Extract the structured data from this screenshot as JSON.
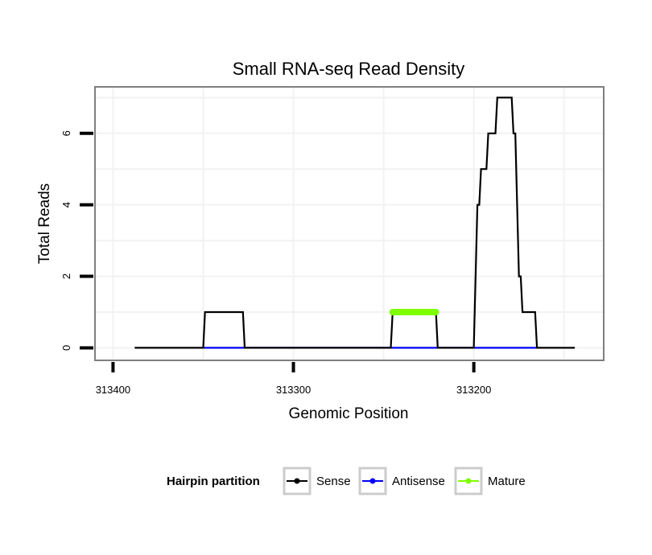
{
  "chart_data": {
    "type": "line",
    "title": "Small RNA-seq Read Density",
    "xlabel": "Genomic Position",
    "ylabel": "Total Reads",
    "x_reversed": true,
    "xlim": [
      313410,
      313128
    ],
    "ylim": [
      -0.35,
      7.3
    ],
    "x_ticks": [
      {
        "value": 313400,
        "label": "313400"
      },
      {
        "value": 313300,
        "label": "313300"
      },
      {
        "value": 313200,
        "label": "313200"
      }
    ],
    "y_ticks": [
      {
        "value": 0,
        "label": "0"
      },
      {
        "value": 2,
        "label": "2"
      },
      {
        "value": 4,
        "label": "4"
      },
      {
        "value": 6,
        "label": "6"
      }
    ],
    "grid": true,
    "legend": {
      "title": "Hairpin partition",
      "position": "bottom",
      "entries": [
        {
          "name": "Sense",
          "color": "#000000"
        },
        {
          "name": "Antisense",
          "color": "#0000ff"
        },
        {
          "name": "Mature",
          "color": "#7fff00"
        }
      ]
    },
    "series": [
      {
        "name": "Sense",
        "color": "#000000",
        "points": [
          [
            313388,
            0
          ],
          [
            313350,
            0
          ],
          [
            313349,
            1
          ],
          [
            313328,
            1
          ],
          [
            313327,
            0
          ],
          [
            313246,
            0
          ],
          [
            313245,
            1
          ],
          [
            313221,
            1
          ],
          [
            313220,
            0
          ],
          [
            313200,
            0
          ],
          [
            313198,
            4
          ],
          [
            313197,
            4
          ],
          [
            313196,
            5
          ],
          [
            313193,
            5
          ],
          [
            313192,
            6
          ],
          [
            313188,
            6
          ],
          [
            313187,
            7
          ],
          [
            313179,
            7
          ],
          [
            313178,
            6
          ],
          [
            313177,
            6
          ],
          [
            313175,
            2
          ],
          [
            313174,
            2
          ],
          [
            313173,
            1
          ],
          [
            313166,
            1
          ],
          [
            313165,
            0
          ],
          [
            313144,
            0
          ]
        ]
      },
      {
        "name": "Antisense",
        "color": "#0000ff",
        "points": [
          [
            313350,
            0
          ],
          [
            313327,
            0
          ],
          [
            313245,
            0
          ],
          [
            313220,
            0
          ],
          [
            313198,
            0
          ],
          [
            313165,
            0
          ]
        ]
      },
      {
        "name": "Mature",
        "color": "#7fff00",
        "points": [
          [
            313245,
            1
          ],
          [
            313221,
            1
          ]
        ]
      }
    ]
  }
}
